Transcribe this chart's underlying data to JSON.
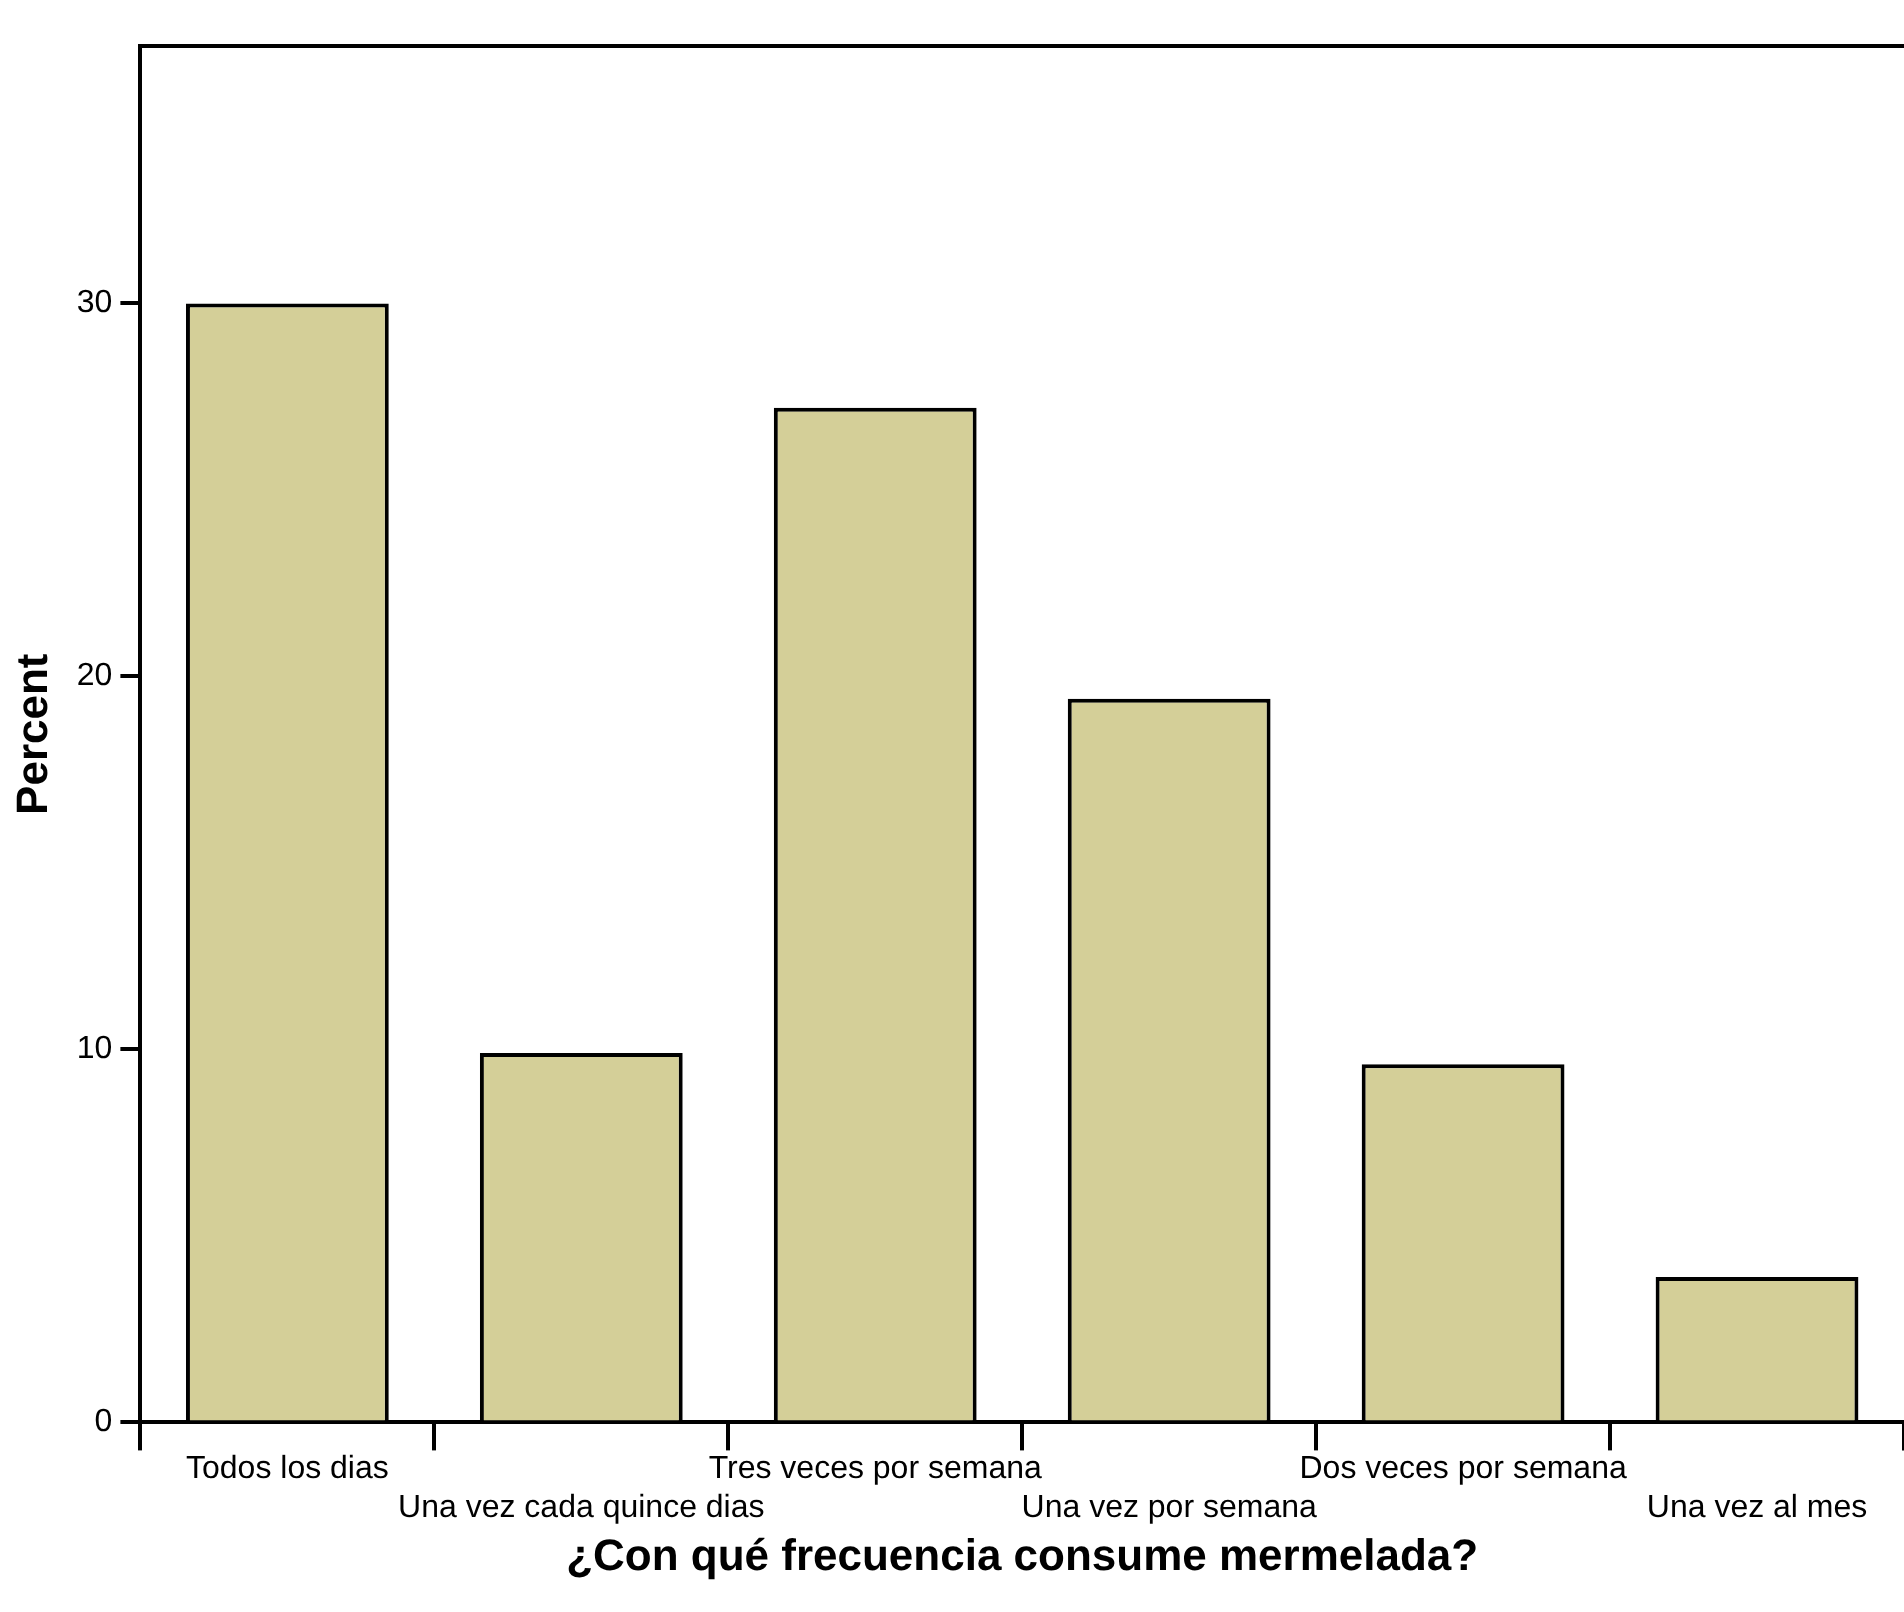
{
  "chart_data": {
    "type": "bar",
    "xlabel": "¿Con qué frecuencia consume mermelada?",
    "ylabel": "Percent",
    "categories": [
      "Todos los dias",
      "Una vez cada quince dias",
      "Tres veces por semana",
      "Una vez por semana",
      "Dos veces por semana",
      "Una vez al mes"
    ],
    "values": [
      30.0,
      9.9,
      27.2,
      19.4,
      9.6,
      3.9
    ],
    "color": "#d4cf98",
    "ylim": [
      0,
      36.9
    ],
    "yticks": [
      0,
      10,
      20,
      30
    ],
    "grid": false,
    "legend": false
  }
}
